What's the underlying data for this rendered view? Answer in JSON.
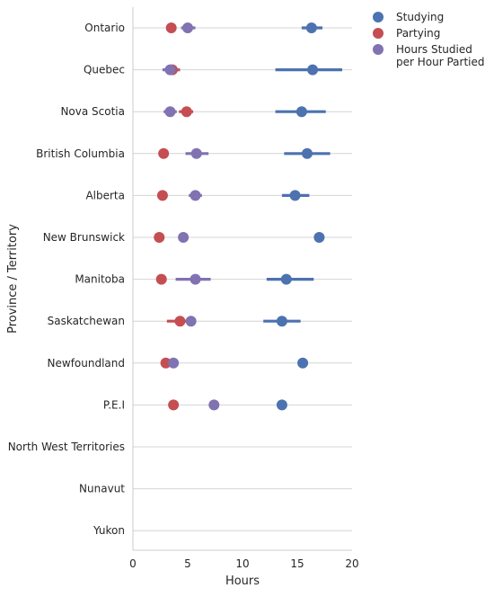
{
  "chart_data": {
    "type": "scatter",
    "subtype": "point-plot-with-error-bars",
    "title": "",
    "xlabel": "Hours",
    "ylabel": "Province / Territory",
    "xlim": [
      0,
      20
    ],
    "xticks": [
      0,
      5,
      10,
      15,
      20
    ],
    "categories": [
      "Ontario",
      "Quebec",
      "Nova Scotia",
      "British Columbia",
      "Alberta",
      "New Brunswick",
      "Manitoba",
      "Saskatchewan",
      "Newfoundland",
      "P.E.I",
      "North West Territories",
      "Nunavut",
      "Yukon"
    ],
    "grid": "horizontal",
    "legend_position": "top-right",
    "series": [
      {
        "name": "Studying",
        "color": "#4c72b0",
        "values": [
          16.3,
          16.4,
          15.4,
          15.9,
          14.8,
          17.0,
          14.0,
          13.6,
          15.5,
          13.6,
          null,
          null,
          null
        ],
        "ci_low": [
          15.4,
          13.0,
          13.0,
          13.8,
          13.6,
          null,
          12.2,
          11.9,
          null,
          null,
          null,
          null,
          null
        ],
        "ci_high": [
          17.3,
          19.1,
          17.6,
          18.0,
          16.1,
          null,
          16.5,
          15.3,
          null,
          null,
          null,
          null,
          null
        ]
      },
      {
        "name": "Partying",
        "color": "#c44e52",
        "values": [
          3.5,
          3.6,
          4.9,
          2.8,
          2.7,
          2.4,
          2.6,
          4.3,
          3.0,
          3.7,
          null,
          null,
          null
        ],
        "ci_low": [
          3.1,
          2.9,
          4.2,
          null,
          null,
          null,
          null,
          3.1,
          null,
          null,
          null,
          null,
          null
        ],
        "ci_high": [
          3.9,
          4.3,
          5.5,
          null,
          null,
          null,
          null,
          5.1,
          null,
          null,
          null,
          null,
          null
        ]
      },
      {
        "name": "Hours Studied\nper Hour Partied",
        "color": "#8172b2",
        "values": [
          5.0,
          3.4,
          3.4,
          5.8,
          5.7,
          4.6,
          5.7,
          5.3,
          3.7,
          7.4,
          null,
          null,
          null
        ],
        "ci_low": [
          4.4,
          2.7,
          2.8,
          4.8,
          5.1,
          null,
          3.9,
          null,
          null,
          null,
          null,
          null,
          null
        ],
        "ci_high": [
          5.7,
          4.2,
          4.0,
          6.9,
          6.3,
          null,
          7.1,
          null,
          null,
          null,
          null,
          null,
          null
        ]
      }
    ]
  }
}
